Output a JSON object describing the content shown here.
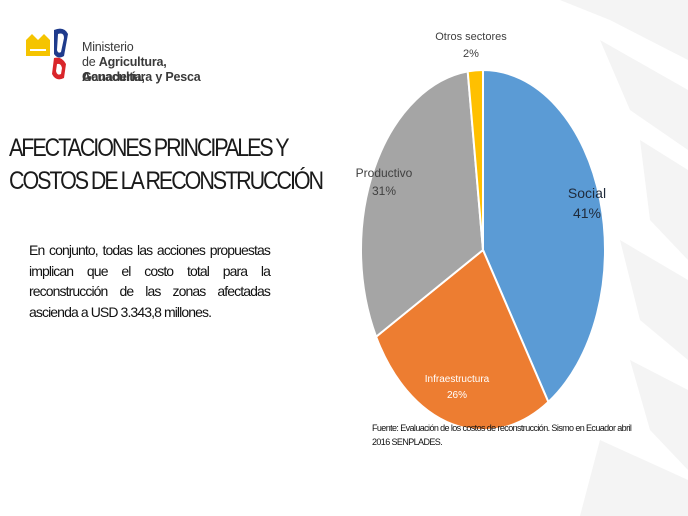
{
  "header": {
    "logo_line1": "Ministerio",
    "logo_line2_prefix": "de ",
    "logo_line2_bold": "Agricultura, Ganadería,",
    "logo_line3": "Acuacultura y Pesca"
  },
  "title": {
    "line1": "AFECTACIONES PRINCIPALES Y",
    "line2": "COSTOS DE LA RECONSTRUCCIÓN"
  },
  "body": {
    "paragraph": "En conjunto, todas las acciones propuestas implican que el costo total para la reconstrucción de las zonas afectadas ascienda a USD 3.343,8 millones."
  },
  "source_note": "Fuente: Evaluación de los costos de reconstrucción. Sismo en Ecuador abril 2016 SENPLADES.",
  "colors": {
    "social": "#5b9bd5",
    "infraestructura": "#ed7d31",
    "productivo": "#a5a5a5",
    "otros": "#ffc000",
    "logo_red": "#d9252a",
    "logo_yellow": "#f5c400",
    "logo_blue": "#1f3b8c"
  },
  "chart_data": {
    "type": "pie",
    "categories": [
      "Social",
      "Infraestructura",
      "Productivo",
      "Otros sectores"
    ],
    "values": [
      41,
      26,
      31,
      2
    ],
    "labels": [
      "41%",
      "26%",
      "31%",
      "2%"
    ],
    "start": "top, clockwise",
    "legend": "none (data labels)"
  }
}
